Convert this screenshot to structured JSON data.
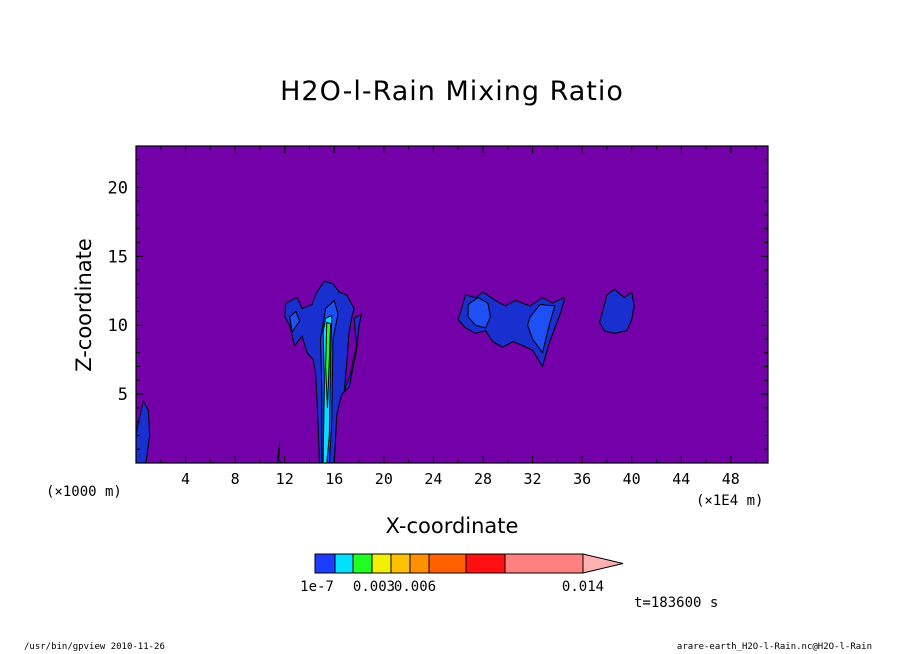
{
  "chart_data": {
    "type": "heatmap",
    "title": "H2O-l-Rain Mixing Ratio",
    "xlabel": "X-coordinate",
    "ylabel": "Z-coordinate",
    "x_unit_left": "(×1000 m)",
    "x_unit_right": "(×1E4 m)",
    "xlim": [
      0,
      51
    ],
    "ylim": [
      0,
      23
    ],
    "x_ticks": [
      4,
      8,
      12,
      16,
      20,
      24,
      28,
      32,
      36,
      40,
      44,
      48
    ],
    "x_tick_labels": [
      "4",
      "8",
      "12",
      "16",
      "20",
      "24",
      "28",
      "32",
      "36",
      "40",
      "44",
      "48"
    ],
    "y_ticks": [
      5,
      10,
      15,
      20
    ],
    "y_tick_labels": [
      "5",
      "10",
      "15",
      "20"
    ],
    "background_color": "#7400aa",
    "regions": [
      {
        "name": "left-edge",
        "level": 1,
        "points": [
          [
            0,
            0
          ],
          [
            0.8,
            0
          ],
          [
            1.1,
            2
          ],
          [
            1.0,
            3.8
          ],
          [
            0.6,
            4.5
          ],
          [
            0.2,
            3
          ],
          [
            0,
            2
          ]
        ]
      },
      {
        "name": "tower-16-outer",
        "level": 1,
        "points": [
          [
            12.1,
            11.6
          ],
          [
            13,
            12
          ],
          [
            13.4,
            11.2
          ],
          [
            14.2,
            11.5
          ],
          [
            14.6,
            12.4
          ],
          [
            15.2,
            13.2
          ],
          [
            15.9,
            13.0
          ],
          [
            16.4,
            12.4
          ],
          [
            17.0,
            12.2
          ],
          [
            17.6,
            11.2
          ],
          [
            17.4,
            10.5
          ],
          [
            17.2,
            9.5
          ],
          [
            17.0,
            7.2
          ],
          [
            16.8,
            5.2
          ],
          [
            17.3,
            6.5
          ],
          [
            17.8,
            8.5
          ],
          [
            17.6,
            10.5
          ],
          [
            18.2,
            10.8
          ],
          [
            18.0,
            10.0
          ],
          [
            17.8,
            8.2
          ],
          [
            17.2,
            5.5
          ],
          [
            16.6,
            5.0
          ],
          [
            16.2,
            3.5
          ],
          [
            16.0,
            0
          ],
          [
            14.8,
            0
          ],
          [
            14.7,
            2.5
          ],
          [
            14.5,
            6.5
          ],
          [
            14.3,
            7.5
          ],
          [
            13.8,
            8.0
          ],
          [
            13.4,
            9.2
          ],
          [
            12.8,
            8.5
          ],
          [
            12.4,
            10.0
          ],
          [
            12.0,
            10.6
          ]
        ]
      },
      {
        "name": "tower-16-mid",
        "level": 2,
        "points": [
          [
            12.6,
            9.5
          ],
          [
            13.2,
            10.3
          ],
          [
            12.9,
            11.0
          ],
          [
            12.4,
            10.6
          ]
        ]
      },
      {
        "name": "tower-16-mid-b",
        "level": 2,
        "points": [
          [
            15.3,
            11.2
          ],
          [
            16.0,
            11.8
          ],
          [
            16.3,
            10.8
          ],
          [
            15.9,
            9.0
          ],
          [
            15.8,
            3.0
          ],
          [
            15.6,
            0
          ],
          [
            15.0,
            0
          ],
          [
            15.0,
            5.0
          ],
          [
            14.9,
            9.0
          ]
        ]
      },
      {
        "name": "tower-16-core",
        "level": 3,
        "points": [
          [
            15.3,
            10.5
          ],
          [
            15.8,
            10.7
          ],
          [
            15.7,
            8.0
          ],
          [
            15.6,
            2.0
          ],
          [
            15.4,
            0
          ],
          [
            15.1,
            0
          ],
          [
            15.2,
            6.0
          ],
          [
            15.1,
            9.5
          ]
        ]
      },
      {
        "name": "tower-16-peak",
        "level": 4,
        "points": [
          [
            15.4,
            10.2
          ],
          [
            15.7,
            10.1
          ],
          [
            15.6,
            7.5
          ],
          [
            15.45,
            4.0
          ],
          [
            15.3,
            7.0
          ]
        ]
      },
      {
        "name": "spike-11",
        "level": 1,
        "points": [
          [
            11.4,
            0
          ],
          [
            11.6,
            1.5
          ],
          [
            11.5,
            0.2
          ],
          [
            11.8,
            0
          ]
        ]
      },
      {
        "name": "cloud-30-outer",
        "level": 1,
        "points": [
          [
            26.2,
            11.0
          ],
          [
            26.6,
            12.2
          ],
          [
            27.4,
            12.0
          ],
          [
            28.0,
            12.4
          ],
          [
            29.0,
            11.8
          ],
          [
            29.8,
            11.4
          ],
          [
            30.6,
            11.8
          ],
          [
            31.8,
            11.4
          ],
          [
            32.8,
            12.0
          ],
          [
            33.6,
            11.6
          ],
          [
            34.6,
            12.0
          ],
          [
            34.3,
            11.0
          ],
          [
            33.8,
            9.8
          ],
          [
            33.3,
            8.6
          ],
          [
            32.8,
            7.0
          ],
          [
            32.0,
            8.2
          ],
          [
            31.0,
            8.6
          ],
          [
            30.4,
            8.8
          ],
          [
            29.6,
            8.4
          ],
          [
            28.8,
            8.8
          ],
          [
            28.2,
            9.6
          ],
          [
            27.4,
            9.4
          ],
          [
            26.6,
            9.8
          ],
          [
            26.0,
            10.4
          ]
        ]
      },
      {
        "name": "cloud-30-inner-a",
        "level": 2,
        "points": [
          [
            26.8,
            11.5
          ],
          [
            27.6,
            12.0
          ],
          [
            28.4,
            11.6
          ],
          [
            28.6,
            10.6
          ],
          [
            28.2,
            9.8
          ],
          [
            27.4,
            10.0
          ],
          [
            26.8,
            10.6
          ]
        ]
      },
      {
        "name": "cloud-30-inner-b",
        "level": 2,
        "points": [
          [
            31.8,
            10.6
          ],
          [
            32.6,
            11.5
          ],
          [
            33.8,
            11.4
          ],
          [
            33.4,
            10.2
          ],
          [
            32.8,
            8.0
          ],
          [
            32.0,
            9.0
          ],
          [
            31.6,
            10.0
          ]
        ]
      },
      {
        "name": "cloud-39",
        "level": 1,
        "points": [
          [
            37.6,
            10.8
          ],
          [
            38.0,
            12.2
          ],
          [
            38.6,
            12.6
          ],
          [
            39.4,
            12.0
          ],
          [
            40.0,
            12.4
          ],
          [
            40.2,
            11.4
          ],
          [
            40.0,
            10.4
          ],
          [
            39.6,
            9.6
          ],
          [
            38.6,
            9.4
          ],
          [
            37.8,
            9.6
          ],
          [
            37.4,
            10.2
          ]
        ]
      }
    ],
    "colorbar": {
      "colors": [
        "#1e3cff",
        "#00e0ff",
        "#20ff20",
        "#f0f000",
        "#ffc000",
        "#ff9000",
        "#ff6000",
        "#ff1010",
        "#ff8080",
        "#ffb0b0"
      ],
      "tick_labels": [
        "1e-7",
        "0.003",
        "0.006",
        "0.014"
      ],
      "tick_indices": [
        0,
        3,
        5,
        10
      ]
    },
    "time_label": "t=183600 s"
  },
  "footer": {
    "left": "/usr/bin/gpview   2010-11-26",
    "right": "arare-earth_H2O-l-Rain.nc@H2O-l-Rain"
  },
  "level_colors": [
    "#7400aa",
    "#1a2fd0",
    "#1e50f5",
    "#00e0ff",
    "#20ff20"
  ]
}
